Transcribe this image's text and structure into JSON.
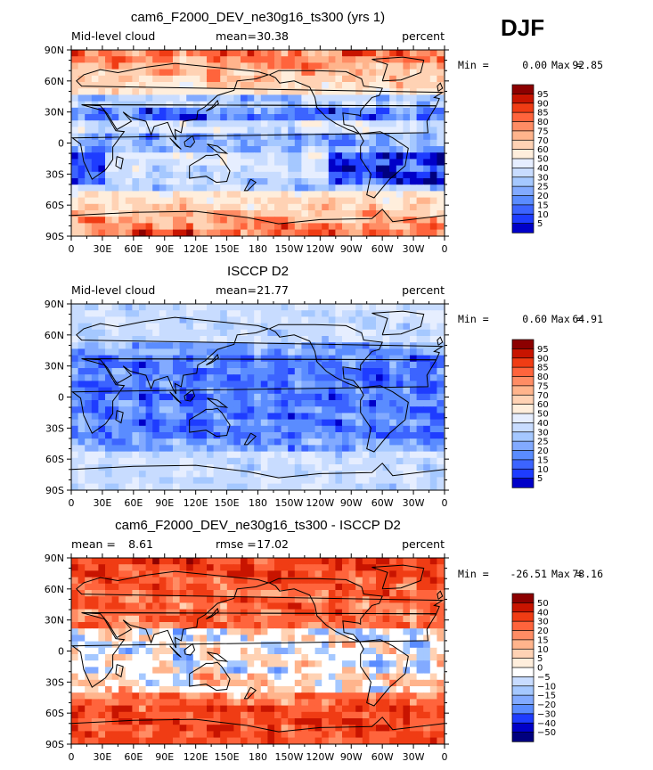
{
  "season_label": "DJF",
  "colors": {
    "map_levels": [
      "#00007f",
      "#0000c8",
      "#1e3cff",
      "#3c64ff",
      "#5a8cff",
      "#82aaff",
      "#a5c8ff",
      "#c8dcff",
      "#e6eeff",
      "#ffeedc",
      "#ffd2b4",
      "#ffb48c",
      "#ff8c64",
      "#ff643c",
      "#f03c14",
      "#c81400",
      "#8c0000"
    ],
    "diff_levels": [
      "#00007f",
      "#0000c8",
      "#1e3cff",
      "#3c64ff",
      "#5a8cff",
      "#82aaff",
      "#a5c8ff",
      "#c8dcff",
      "#e6eeff",
      "#ffffff",
      "#ffeedc",
      "#ffd2b4",
      "#ffb48c",
      "#ff8c64",
      "#ff643c",
      "#f03c14",
      "#c81400",
      "#8c0000"
    ],
    "coast": "#000000"
  },
  "chart_data": [
    {
      "type": "heatmap",
      "title": "cam6_F2000_DEV_ne30g16_ts300 (yrs 1)",
      "left_label": "Mid-level cloud",
      "mean_label": "mean=",
      "mean_value": "30.38",
      "units": "percent",
      "min_label": "Min =",
      "min_value": "0.00",
      "max_label": "Max =",
      "max_value": "92.85",
      "x_ticks": [
        "0",
        "30E",
        "60E",
        "90E",
        "120E",
        "150E",
        "180",
        "150W",
        "120W",
        "90W",
        "60W",
        "30W",
        "0"
      ],
      "y_ticks": [
        "90N",
        "60N",
        "30N",
        "0",
        "30S",
        "60S",
        "90S"
      ],
      "colorbar": [
        "95",
        "90",
        "85",
        "80",
        "75",
        "70",
        "60",
        "50",
        "40",
        "30",
        "25",
        "20",
        "15",
        "10",
        "5"
      ],
      "xlim": [
        0,
        360
      ],
      "ylim": [
        -90,
        90
      ]
    },
    {
      "type": "heatmap",
      "title": "ISCCP D2",
      "left_label": "Mid-level cloud",
      "mean_label": "mean=",
      "mean_value": "21.77",
      "units": "percent",
      "min_label": "Min =",
      "min_value": "0.60",
      "max_label": "Max =",
      "max_value": "64.91",
      "x_ticks": [
        "0",
        "30E",
        "60E",
        "90E",
        "120E",
        "150E",
        "180",
        "150W",
        "120W",
        "90W",
        "60W",
        "30W",
        "0"
      ],
      "y_ticks": [
        "90N",
        "60N",
        "30N",
        "0",
        "30S",
        "60S",
        "90S"
      ],
      "colorbar": [
        "95",
        "90",
        "85",
        "80",
        "75",
        "70",
        "60",
        "50",
        "40",
        "30",
        "25",
        "20",
        "15",
        "10",
        "5"
      ],
      "xlim": [
        0,
        360
      ],
      "ylim": [
        -90,
        90
      ]
    },
    {
      "type": "heatmap",
      "title": "cam6_F2000_DEV_ne30g16_ts300 - ISCCP D2",
      "left_label": "mean =",
      "left_value": "8.61",
      "mid_label": "rmse =",
      "mid_value": "17.02",
      "units": "percent",
      "min_label": "Min =",
      "min_value": "-26.51",
      "max_label": "Max =",
      "max_value": "78.16",
      "x_ticks": [
        "0",
        "30E",
        "60E",
        "90E",
        "120E",
        "150E",
        "180",
        "150W",
        "120W",
        "90W",
        "60W",
        "30W",
        "0"
      ],
      "y_ticks": [
        "90N",
        "60N",
        "30N",
        "0",
        "30S",
        "60S",
        "90S"
      ],
      "colorbar": [
        "50",
        "40",
        "30",
        "20",
        "15",
        "10",
        "5",
        "0",
        "−5",
        "−10",
        "−15",
        "−20",
        "−30",
        "−40",
        "−50"
      ],
      "xlim": [
        0,
        360
      ],
      "ylim": [
        -90,
        90
      ]
    }
  ]
}
